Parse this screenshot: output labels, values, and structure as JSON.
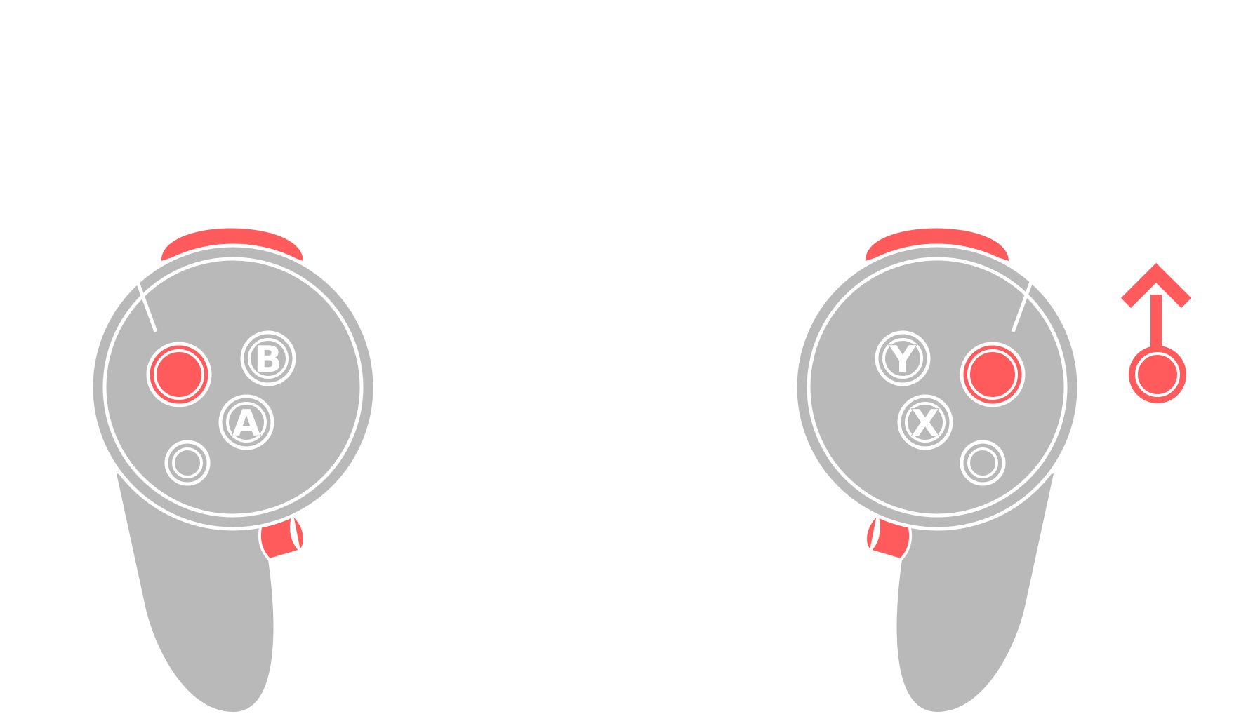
{
  "colors": {
    "background": "#ffffff",
    "controller_body": "#b9b9b9",
    "highlight": "#ff5a5c",
    "outline": "#ffffff"
  },
  "right_controller": {
    "button_a_label": "A",
    "button_b_label": "B",
    "thumbstick_highlighted": true,
    "trigger_highlighted": true,
    "grip_highlighted": true
  },
  "left_controller": {
    "button_x_label": "X",
    "button_y_label": "Y",
    "thumbstick_highlighted": true,
    "trigger_highlighted": true,
    "grip_highlighted": true
  },
  "legend": {
    "icon": "thumbstick-push-up-icon",
    "direction": "up"
  }
}
